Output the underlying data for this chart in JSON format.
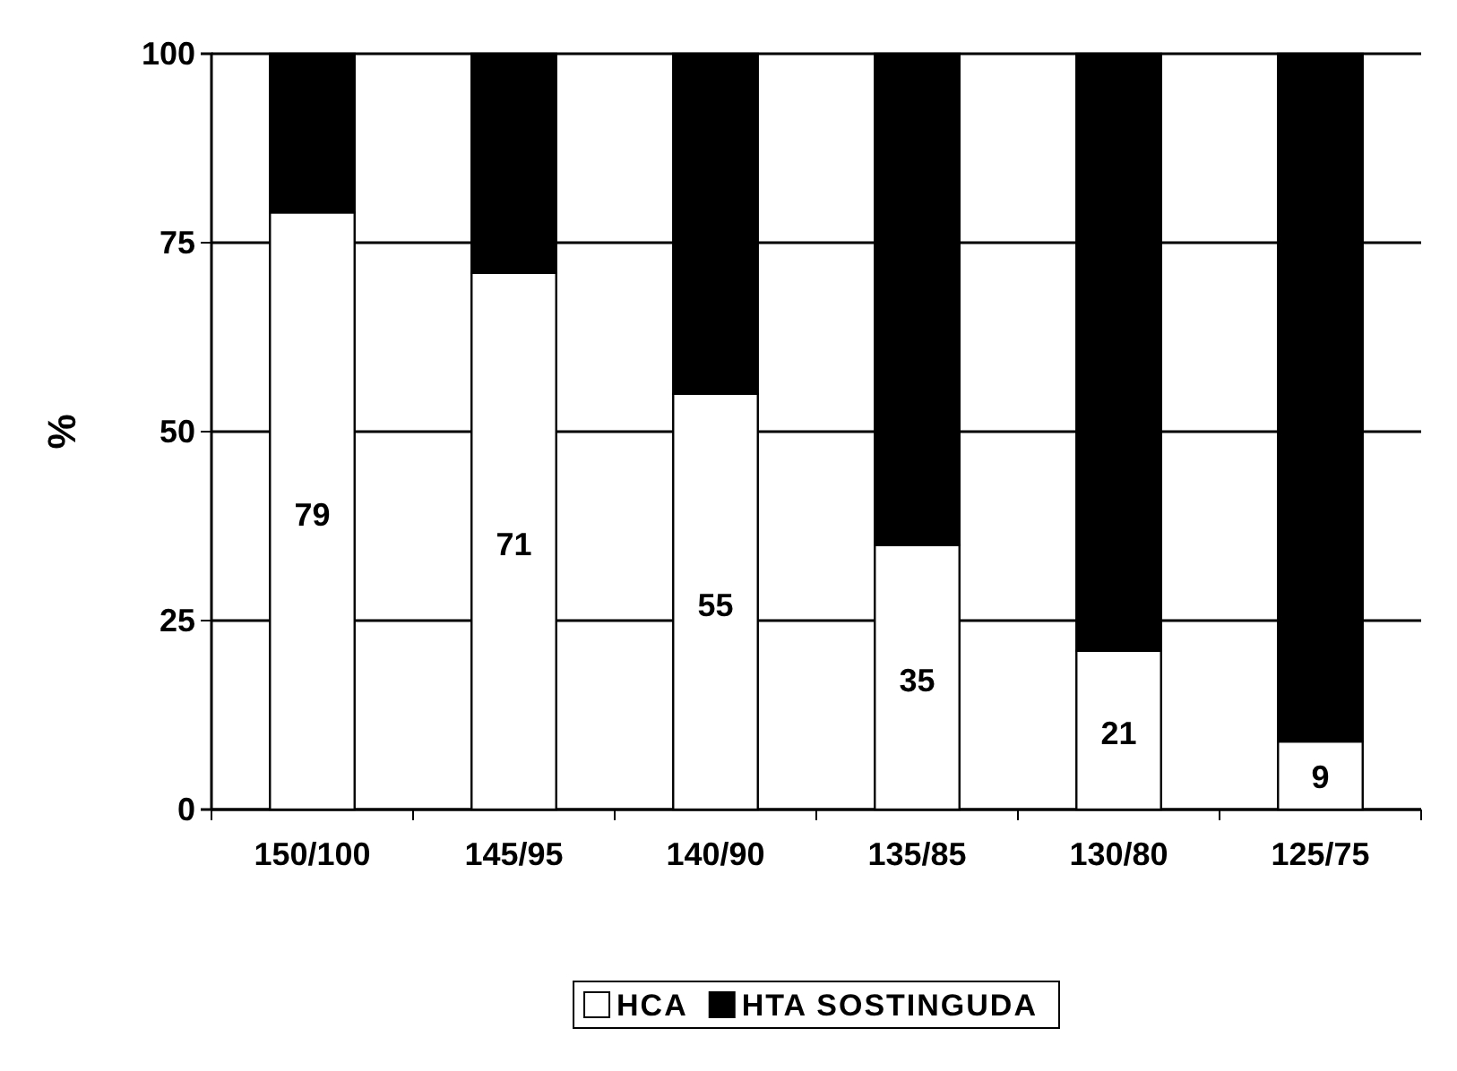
{
  "chart_data": {
    "type": "bar",
    "stacked": true,
    "ylabel": "%",
    "categories": [
      "150/100",
      "145/95",
      "140/90",
      "135/85",
      "130/80",
      "125/75"
    ],
    "series": [
      {
        "name": "HCA",
        "color": "#ffffff",
        "values": [
          79,
          71,
          55,
          35,
          21,
          9
        ],
        "value_labels": [
          "79",
          "71",
          "55",
          "35",
          "21",
          "9"
        ]
      },
      {
        "name": "HTA SOSTINGUDA",
        "color": "#000000",
        "values": [
          21,
          29,
          45,
          65,
          79,
          91
        ]
      }
    ],
    "ylim": [
      0,
      100
    ],
    "yticks": [
      0,
      25,
      50,
      75,
      100
    ],
    "grid": "y",
    "legend": "bottom"
  }
}
